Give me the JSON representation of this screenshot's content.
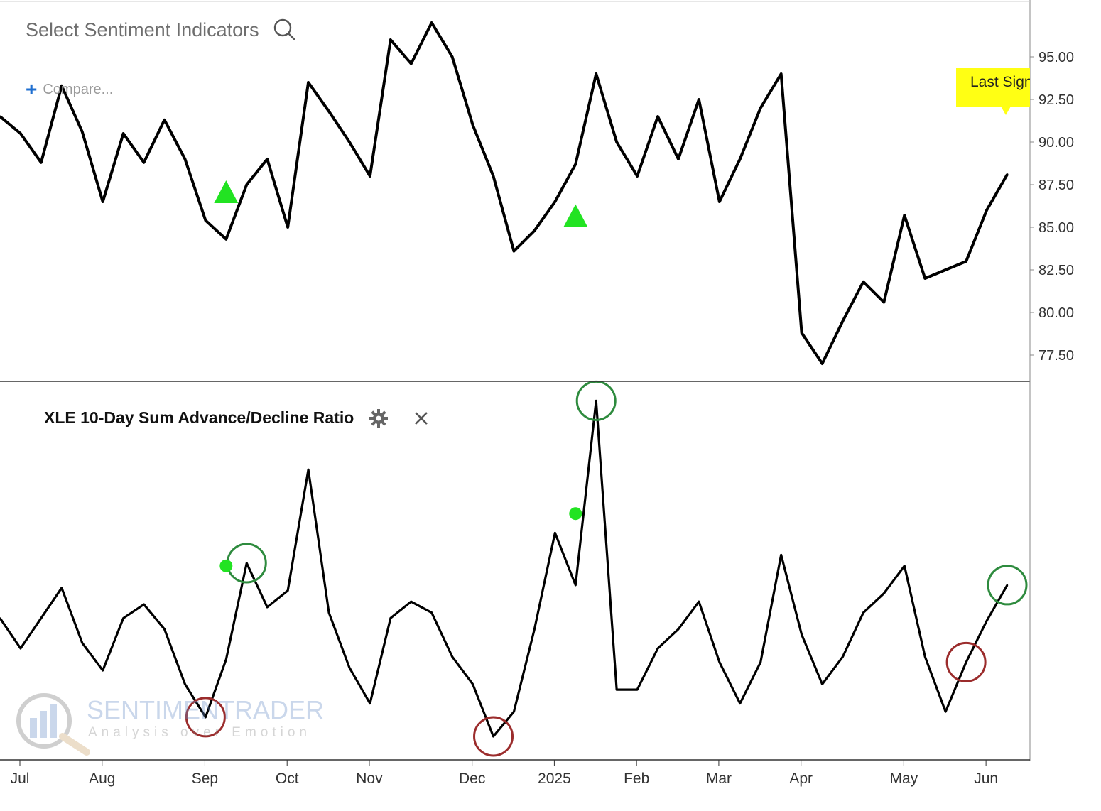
{
  "header": {
    "search_label": "Select Sentiment Indicators",
    "compare_label": "Compare..."
  },
  "indicator": {
    "title": "XLE 10-Day Sum Advance/Decline Ratio"
  },
  "last_signal": {
    "label": "Last Signal"
  },
  "watermark": {
    "brand": "SENTIMENTRADER",
    "tagline": "Analysis over Emotion"
  },
  "colors": {
    "line": "#000000",
    "signal_green": "#22e322",
    "circle_green": "#2e8b3e",
    "circle_red": "#9b2c2c",
    "highlight": "#ffff14",
    "axis": "#888888"
  },
  "icons": [
    "search-icon",
    "plus-icon",
    "gear-icon",
    "close-icon"
  ],
  "chart_data": [
    {
      "type": "line",
      "title": "",
      "x": [
        "Jul",
        "Jul",
        "Jul",
        "Jul",
        "Aug",
        "Aug",
        "Aug",
        "Aug",
        "Aug",
        "Sep",
        "Sep",
        "Sep",
        "Sep",
        "Oct",
        "Oct",
        "Oct",
        "Oct",
        "Nov",
        "Nov",
        "Nov",
        "Nov",
        "Nov",
        "Dec",
        "Dec",
        "Dec",
        "Dec",
        "2025",
        "2025",
        "2025",
        "2025",
        "Feb",
        "Feb",
        "Feb",
        "Feb",
        "Mar",
        "Mar",
        "Mar",
        "Mar",
        "Apr",
        "Apr",
        "Apr",
        "Apr",
        "Apr",
        "May",
        "May",
        "May",
        "May",
        "Jun",
        "Jun",
        "Jun"
      ],
      "x_ticks": [
        "Jul",
        "Aug",
        "Sep",
        "Oct",
        "Nov",
        "Dec",
        "2025",
        "Feb",
        "Mar",
        "Apr",
        "May",
        "Jun"
      ],
      "series": [
        {
          "values": [
            91.5,
            90.5,
            88.8,
            93.3,
            90.6,
            86.5,
            90.5,
            88.8,
            91.3,
            89.0,
            85.4,
            84.3,
            87.5,
            89.0,
            85.0,
            93.5,
            91.8,
            90.0,
            88.0,
            96.0,
            94.6,
            97.0,
            95.0,
            91.0,
            88.0,
            83.6,
            84.8,
            86.5,
            88.7,
            94.0,
            90.0,
            88.0,
            91.5,
            89.0,
            92.5,
            86.5,
            89.0,
            92.0,
            94.0,
            78.8,
            77.0,
            79.5,
            81.8,
            80.6,
            85.7,
            82.0,
            82.5,
            83.0,
            86.0,
            88.1
          ]
        }
      ],
      "signals": [
        {
          "x": "Sep",
          "y": 87.0
        },
        {
          "x": "2025",
          "y": 85.6
        }
      ],
      "y_ticks": [
        77.5,
        80.0,
        82.5,
        85.0,
        87.5,
        90.0,
        92.5,
        95.0
      ],
      "ylim": [
        76.0,
        98.0
      ],
      "grid": false,
      "ylabel": "",
      "xlabel": ""
    },
    {
      "type": "line",
      "title": "XLE 10-Day Sum Advance/Decline Ratio",
      "x": [
        "Jul",
        "Jul",
        "Jul",
        "Jul",
        "Aug",
        "Aug",
        "Aug",
        "Aug",
        "Aug",
        "Sep",
        "Sep",
        "Sep",
        "Sep",
        "Oct",
        "Oct",
        "Oct",
        "Oct",
        "Nov",
        "Nov",
        "Nov",
        "Nov",
        "Nov",
        "Dec",
        "Dec",
        "Dec",
        "Dec",
        "2025",
        "2025",
        "2025",
        "2025",
        "Feb",
        "Feb",
        "Feb",
        "Feb",
        "Mar",
        "Mar",
        "Mar",
        "Mar",
        "Apr",
        "Apr",
        "Apr",
        "Apr",
        "Apr",
        "May",
        "May",
        "May",
        "May",
        "Jun",
        "Jun",
        "Jun"
      ],
      "series": [
        {
          "values": [
            0.56,
            0.45,
            0.56,
            0.67,
            0.47,
            0.37,
            0.56,
            0.61,
            0.52,
            0.32,
            0.2,
            0.41,
            0.76,
            0.6,
            0.66,
            1.1,
            0.58,
            0.38,
            0.25,
            0.56,
            0.62,
            0.58,
            0.42,
            0.32,
            0.13,
            0.22,
            0.52,
            0.87,
            0.68,
            1.35,
            0.3,
            0.3,
            0.45,
            0.52,
            0.62,
            0.4,
            0.25,
            0.4,
            0.79,
            0.5,
            0.32,
            0.42,
            0.58,
            0.65,
            0.75,
            0.42,
            0.22,
            0.4,
            0.55,
            0.68
          ]
        }
      ],
      "signals": [
        {
          "x": "Sep",
          "y": 0.75
        },
        {
          "x": "2025",
          "y": 0.94
        }
      ],
      "highlighted_peaks": [
        "Sep",
        "2025",
        "Jun"
      ],
      "highlighted_troughs": [
        "Sep",
        "Dec",
        "Jun"
      ],
      "ylim": [
        0.05,
        1.4
      ],
      "grid": false,
      "ylabel": "",
      "xlabel": ""
    }
  ]
}
